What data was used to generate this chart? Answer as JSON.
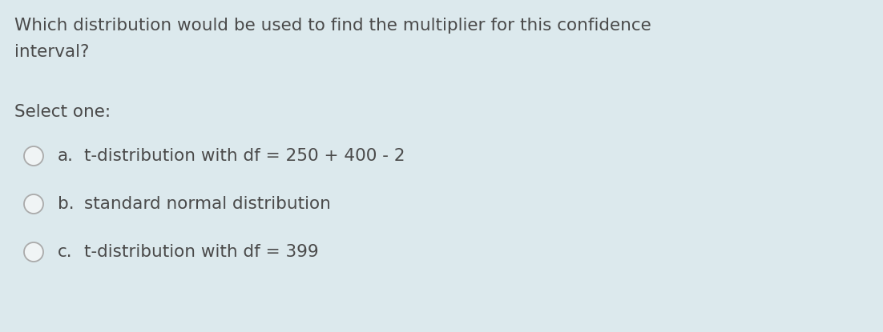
{
  "background_color": "#dce9ed",
  "question_line1": "Which distribution would be used to find the multiplier for this confidence",
  "question_line2": "interval?",
  "select_label": "Select one:",
  "options": [
    {
      "label": "a.",
      "text": "t-distribution with df = 250 + 400 - 2"
    },
    {
      "label": "b.",
      "text": "standard normal distribution"
    },
    {
      "label": "c.",
      "text": "t-distribution with df = 399"
    }
  ],
  "text_color": "#4a4a4a",
  "circle_facecolor": "#f0f4f5",
  "circle_edge_color": "#aaaaaa",
  "question_fontsize": 15.5,
  "select_fontsize": 15.5,
  "option_fontsize": 15.5,
  "fig_width": 11.02,
  "fig_height": 4.15,
  "dpi": 100
}
